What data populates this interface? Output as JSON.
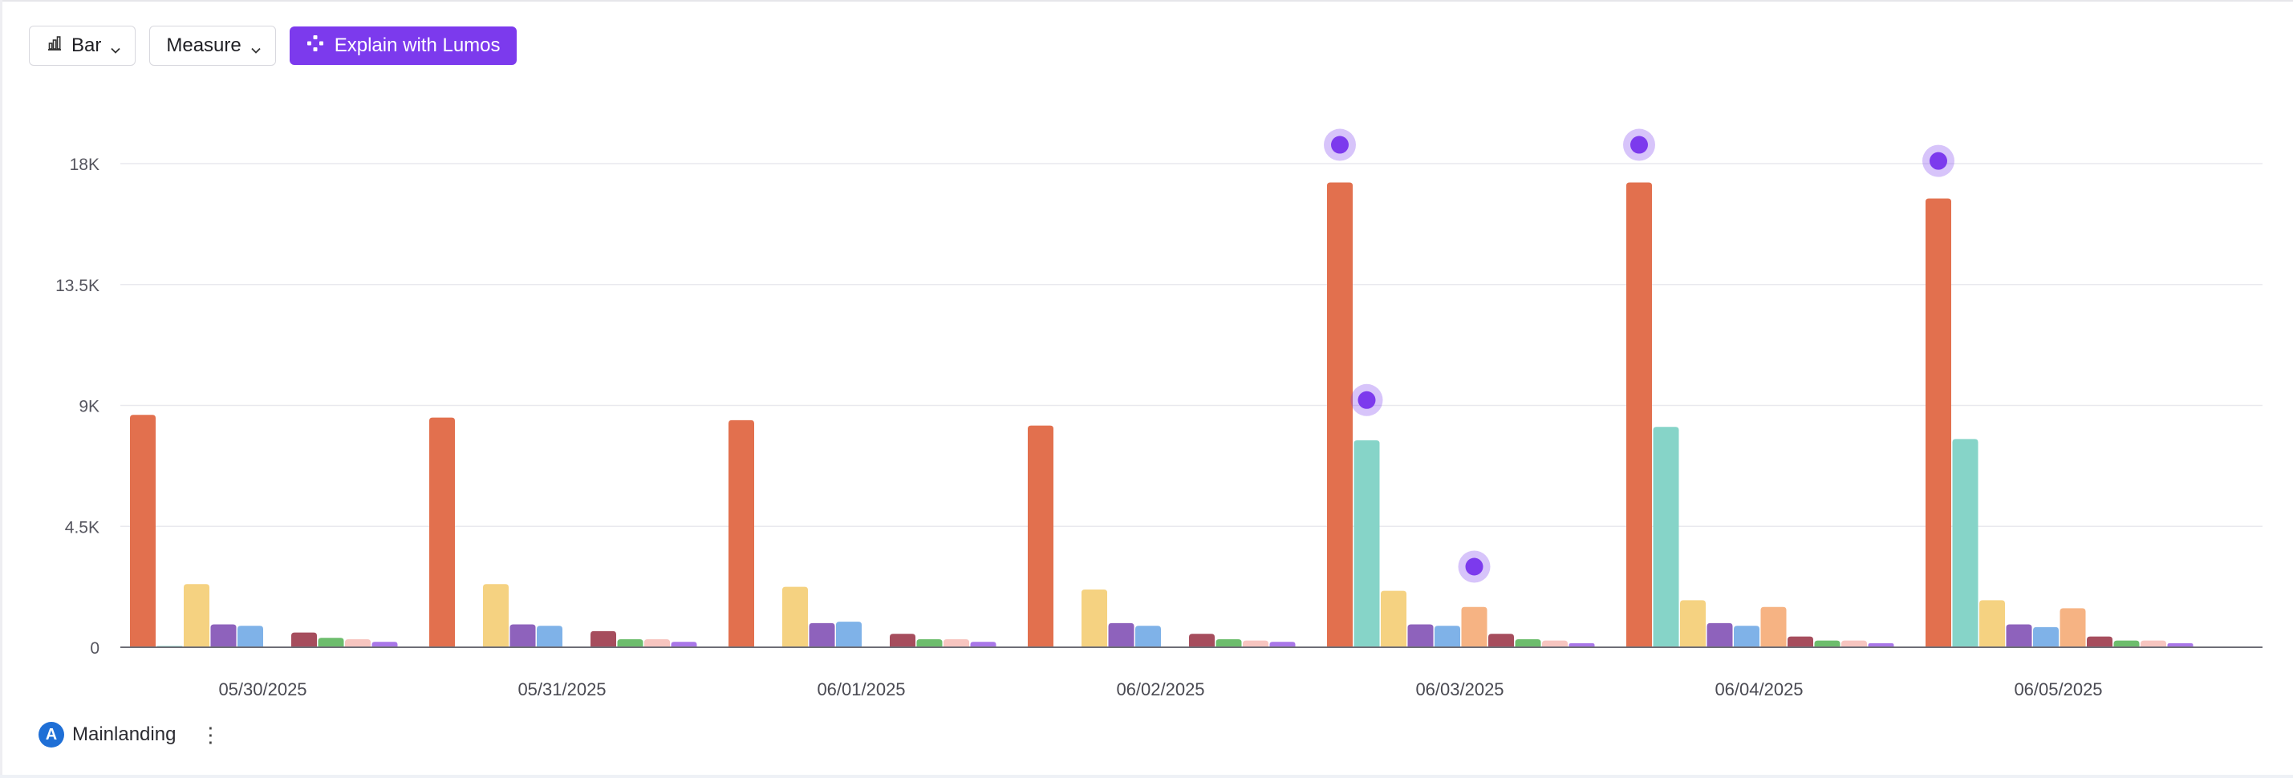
{
  "toolbar": {
    "chart_type_label": "Bar",
    "chart_type_icon": "bar-chart-icon",
    "measure_label": "Measure",
    "explain_label": "Explain with Lumos",
    "explain_icon": "lumos-sparkle-icon",
    "explain_color": "#7c3aed"
  },
  "footer": {
    "badge_letter": "A",
    "query_label": "Mainlanding",
    "badge_color": "#1f6fd6"
  },
  "chart_data": {
    "type": "bar",
    "categories": [
      "05/30/2025",
      "05/31/2025",
      "06/01/2025",
      "06/02/2025",
      "06/03/2025",
      "06/04/2025",
      "06/05/2025"
    ],
    "ylim": [
      0,
      18000
    ],
    "yticks": [
      {
        "value": 0,
        "label": "0"
      },
      {
        "value": 4500,
        "label": "4.5K"
      },
      {
        "value": 9000,
        "label": "9K"
      },
      {
        "value": 13500,
        "label": "13.5K"
      },
      {
        "value": 18000,
        "label": "18K"
      }
    ],
    "grid": true,
    "legend": "none",
    "series": [
      {
        "color": "#e2704e",
        "values": [
          8650,
          8550,
          8450,
          8250,
          17300,
          17300,
          16700
        ]
      },
      {
        "color": "#86d4c8",
        "values": [
          50,
          0,
          0,
          0,
          7700,
          8200,
          7750
        ]
      },
      {
        "color": "#f5d281",
        "values": [
          2350,
          2350,
          2250,
          2150,
          2100,
          1750,
          1750
        ]
      },
      {
        "color": "#8e62bc",
        "values": [
          850,
          850,
          900,
          900,
          850,
          900,
          850
        ]
      },
      {
        "color": "#7fb2e8",
        "values": [
          800,
          800,
          950,
          800,
          800,
          800,
          750
        ]
      },
      {
        "color": "#f6b383",
        "values": [
          0,
          0,
          0,
          0,
          1500,
          1500,
          1450
        ]
      },
      {
        "color": "#a64d5d",
        "values": [
          550,
          600,
          500,
          500,
          500,
          400,
          400
        ]
      },
      {
        "color": "#6dbd6d",
        "values": [
          350,
          300,
          300,
          300,
          300,
          250,
          250
        ]
      },
      {
        "color": "#f7c5c0",
        "values": [
          300,
          300,
          300,
          250,
          250,
          250,
          250
        ]
      },
      {
        "color": "#a977e8",
        "values": [
          200,
          200,
          200,
          200,
          150,
          150,
          150
        ]
      }
    ],
    "annotations": [
      {
        "category_index": 4,
        "series_index": 0,
        "value": 18700
      },
      {
        "category_index": 4,
        "series_index": 1,
        "value": 9200
      },
      {
        "category_index": 4,
        "series_index": 5,
        "value": 3000
      },
      {
        "category_index": 5,
        "series_index": 0,
        "value": 18700
      },
      {
        "category_index": 6,
        "series_index": 0,
        "value": 18100
      }
    ],
    "annotation_color": "#7c3aed"
  }
}
